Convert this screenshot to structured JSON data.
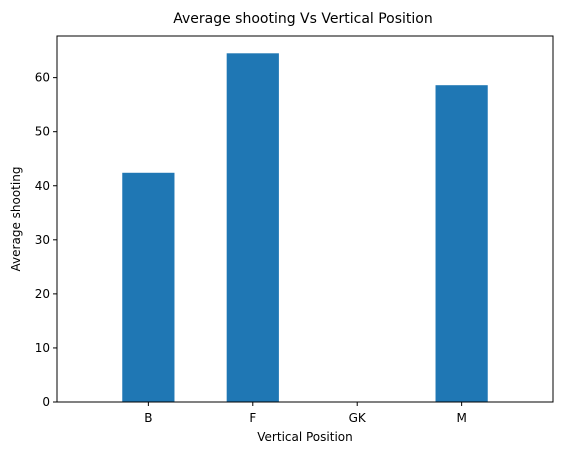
{
  "chart_data": {
    "type": "bar",
    "title": "Average shooting Vs Vertical Position",
    "xlabel": "Vertical Position",
    "ylabel": "Average shooting",
    "categories": [
      "B",
      "F",
      "GK",
      "M"
    ],
    "values": [
      42.4,
      64.5,
      0,
      58.6
    ],
    "ylim": [
      0,
      67.7
    ],
    "yticks": [
      0,
      10,
      20,
      30,
      40,
      50,
      60
    ],
    "grid": false,
    "bar_color": "#1f77b4"
  }
}
